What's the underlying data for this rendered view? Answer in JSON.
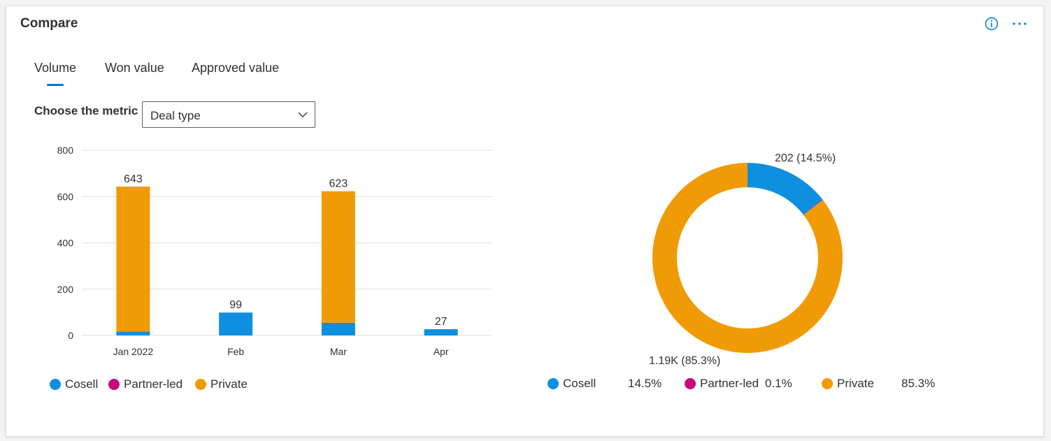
{
  "card": {
    "title": "Compare"
  },
  "icons": {
    "info": "info-icon",
    "more": "more-horizontal-icon"
  },
  "tabs": [
    {
      "label": "Volume",
      "selected": true
    },
    {
      "label": "Won value",
      "selected": false
    },
    {
      "label": "Approved value",
      "selected": false
    }
  ],
  "metric": {
    "label": "Choose the metric",
    "value": "Deal type"
  },
  "colors": {
    "cosell": "#0f8fe0",
    "partner_led": "#c8087f",
    "private": "#f09b05",
    "accent": "#0078d4"
  },
  "chart_data": [
    {
      "type": "bar",
      "stacked": true,
      "categories": [
        "Jan 2022",
        "Feb",
        "Mar",
        "Apr"
      ],
      "series": [
        {
          "name": "Cosell",
          "values": [
            17,
            99,
            55,
            27
          ]
        },
        {
          "name": "Partner-led",
          "values": [
            0,
            0,
            0,
            0
          ]
        },
        {
          "name": "Private",
          "values": [
            626,
            0,
            568,
            0
          ]
        }
      ],
      "totals": [
        "643",
        "99",
        "623",
        "27"
      ],
      "ylim": [
        0,
        800
      ],
      "yticks": [
        0,
        200,
        400,
        600,
        800
      ],
      "grid": true,
      "legend_placement": "bottom-left"
    },
    {
      "type": "pie",
      "donut": true,
      "slices": [
        {
          "name": "Cosell",
          "value": 202,
          "percent": "14.5%"
        },
        {
          "name": "Partner-led",
          "value": 1,
          "percent": "0.1%"
        },
        {
          "name": "Private",
          "value": 1190,
          "percent": "85.3%"
        }
      ],
      "labels": [
        "202 (14.5%)",
        "1.19K (85.3%)"
      ],
      "legend_placement": "bottom"
    }
  ]
}
